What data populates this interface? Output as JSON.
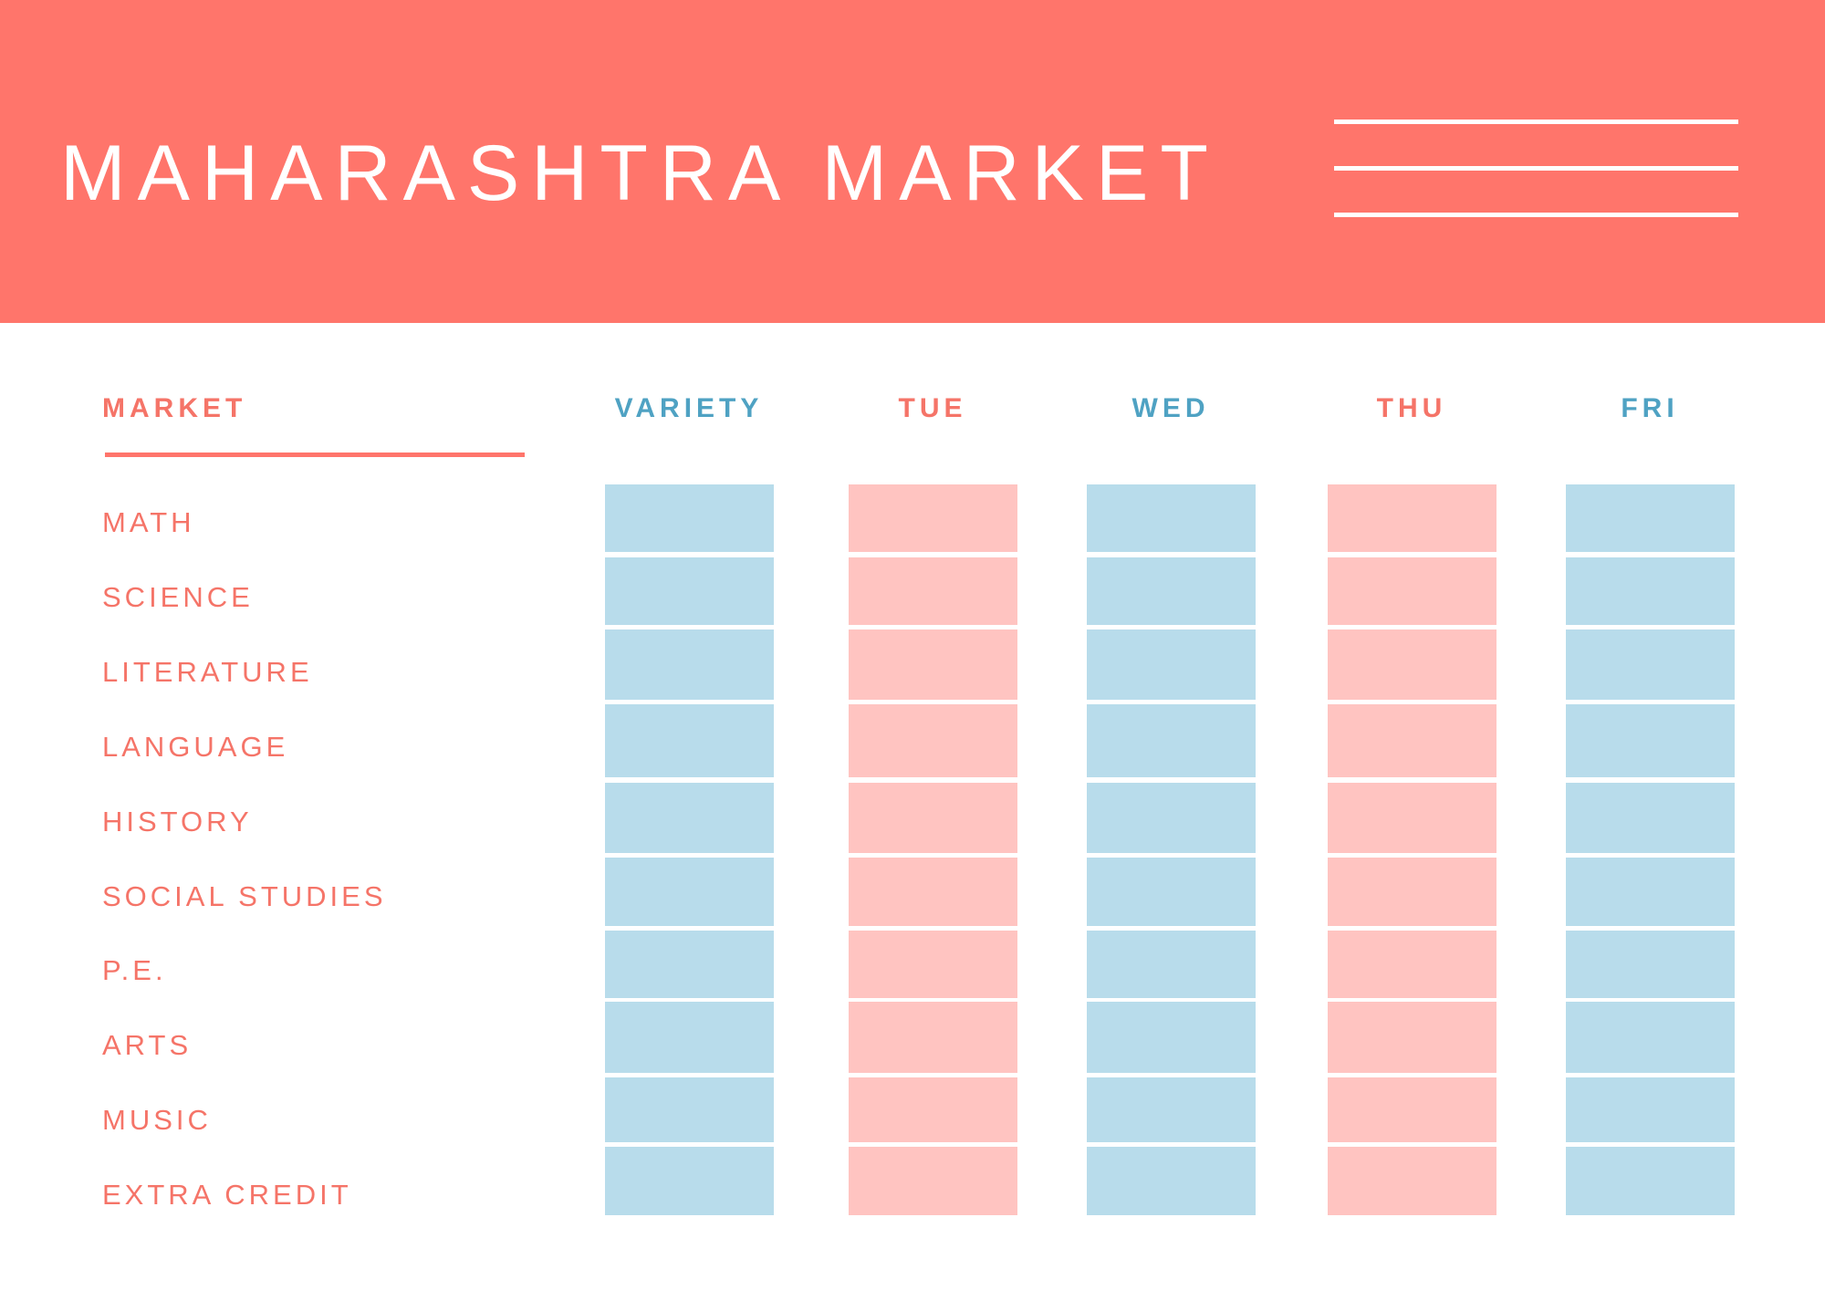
{
  "header": {
    "title": "MAHARASHTRA MARKET",
    "decorative_lines": 3
  },
  "table": {
    "row_header": "MARKET",
    "columns": [
      {
        "label": "VARIETY",
        "color": "#4fa2c3",
        "cell_color": "#b8dceb"
      },
      {
        "label": "TUE",
        "color": "#f57468",
        "cell_color": "#ffc4c1"
      },
      {
        "label": "WED",
        "color": "#4fa2c3",
        "cell_color": "#b8dceb"
      },
      {
        "label": "THU",
        "color": "#f57468",
        "cell_color": "#ffc4c1"
      },
      {
        "label": "FRI",
        "color": "#4fa2c3",
        "cell_color": "#b8dceb"
      }
    ],
    "rows": [
      "MATH",
      "SCIENCE",
      "LITERATURE",
      "LANGUAGE",
      "HISTORY",
      "SOCIAL STUDIES",
      "P.E.",
      "ARTS",
      "MUSIC",
      "EXTRA CREDIT"
    ]
  },
  "colors": {
    "accent": "#ff756b",
    "label_text": "#f57468",
    "background": "#ffffff"
  }
}
